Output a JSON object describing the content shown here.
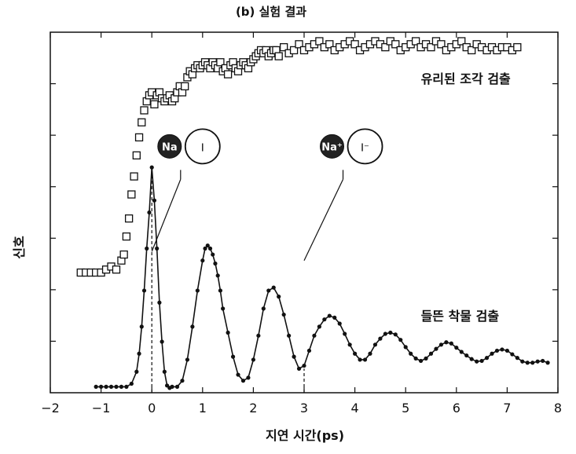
{
  "chart_data": {
    "type": "scatter",
    "title": "(b) 실험 결과",
    "xlabel": "지연 시간(ps)",
    "ylabel": "신호",
    "xlim": [
      -2,
      8
    ],
    "ylim": [
      0,
      6
    ],
    "x_ticks": [
      -2,
      -1,
      0,
      1,
      2,
      3,
      4,
      5,
      6,
      7,
      8
    ],
    "y_ticks_count": 6,
    "grid": false,
    "series": [
      {
        "name": "유리된 조각 검출",
        "marker": "open-square",
        "x": [
          -1.4,
          -1.3,
          -1.2,
          -1.1,
          -1.0,
          -0.9,
          -0.8,
          -0.7,
          -0.6,
          -0.55,
          -0.5,
          -0.45,
          -0.4,
          -0.35,
          -0.3,
          -0.25,
          -0.2,
          -0.15,
          -0.1,
          -0.05,
          0.0,
          0.05,
          0.1,
          0.15,
          0.2,
          0.25,
          0.3,
          0.35,
          0.4,
          0.45,
          0.5,
          0.55,
          0.6,
          0.65,
          0.7,
          0.75,
          0.8,
          0.85,
          0.9,
          0.95,
          1.0,
          1.05,
          1.1,
          1.15,
          1.2,
          1.25,
          1.3,
          1.35,
          1.4,
          1.45,
          1.5,
          1.55,
          1.6,
          1.65,
          1.7,
          1.75,
          1.8,
          1.85,
          1.9,
          1.95,
          2.0,
          2.05,
          2.1,
          2.15,
          2.2,
          2.25,
          2.3,
          2.35,
          2.4,
          2.45,
          2.5,
          2.6,
          2.7,
          2.8,
          2.9,
          3.0,
          3.1,
          3.2,
          3.3,
          3.4,
          3.5,
          3.6,
          3.7,
          3.8,
          3.9,
          4.0,
          4.1,
          4.2,
          4.3,
          4.4,
          4.5,
          4.6,
          4.7,
          4.8,
          4.9,
          5.0,
          5.1,
          5.2,
          5.3,
          5.4,
          5.5,
          5.6,
          5.7,
          5.8,
          5.9,
          6.0,
          6.1,
          6.2,
          6.3,
          6.4,
          6.5,
          6.6,
          6.7,
          6.8,
          6.9,
          7.0,
          7.1,
          7.2
        ],
        "y": [
          2.0,
          2.0,
          2.0,
          2.0,
          2.0,
          2.05,
          2.1,
          2.05,
          2.2,
          2.3,
          2.6,
          2.9,
          3.3,
          3.6,
          3.95,
          4.25,
          4.5,
          4.7,
          4.85,
          4.95,
          5.0,
          4.8,
          4.95,
          5.0,
          4.9,
          4.85,
          4.9,
          4.95,
          4.85,
          4.9,
          5.0,
          5.1,
          5.0,
          5.1,
          5.25,
          5.35,
          5.3,
          5.4,
          5.45,
          5.4,
          5.45,
          5.5,
          5.45,
          5.4,
          5.5,
          5.45,
          5.4,
          5.5,
          5.35,
          5.4,
          5.3,
          5.45,
          5.5,
          5.4,
          5.35,
          5.45,
          5.5,
          5.45,
          5.4,
          5.5,
          5.55,
          5.6,
          5.65,
          5.7,
          5.65,
          5.7,
          5.6,
          5.65,
          5.7,
          5.7,
          5.6,
          5.75,
          5.65,
          5.7,
          5.8,
          5.7,
          5.75,
          5.8,
          5.85,
          5.75,
          5.8,
          5.7,
          5.75,
          5.8,
          5.85,
          5.8,
          5.7,
          5.75,
          5.8,
          5.85,
          5.8,
          5.75,
          5.85,
          5.8,
          5.7,
          5.75,
          5.8,
          5.85,
          5.75,
          5.8,
          5.75,
          5.85,
          5.8,
          5.7,
          5.75,
          5.8,
          5.85,
          5.75,
          5.7,
          5.8,
          5.75,
          5.7,
          5.75,
          5.7,
          5.75,
          5.75,
          5.7,
          5.75
        ]
      },
      {
        "name": "들뜬 착물 검출",
        "marker": "filled-circle",
        "x": [
          -1.1,
          -1.0,
          -0.9,
          -0.8,
          -0.7,
          -0.6,
          -0.5,
          -0.4,
          -0.3,
          -0.25,
          -0.2,
          -0.15,
          -0.1,
          -0.05,
          0.0,
          0.05,
          0.1,
          0.15,
          0.2,
          0.25,
          0.3,
          0.35,
          0.4,
          0.5,
          0.6,
          0.7,
          0.8,
          0.9,
          1.0,
          1.05,
          1.1,
          1.15,
          1.2,
          1.25,
          1.3,
          1.35,
          1.4,
          1.5,
          1.6,
          1.7,
          1.8,
          1.9,
          2.0,
          2.1,
          2.2,
          2.3,
          2.4,
          2.5,
          2.6,
          2.7,
          2.8,
          2.9,
          3.0,
          3.1,
          3.2,
          3.3,
          3.4,
          3.5,
          3.6,
          3.7,
          3.8,
          3.9,
          4.0,
          4.1,
          4.2,
          4.3,
          4.4,
          4.5,
          4.6,
          4.7,
          4.8,
          4.9,
          5.0,
          5.1,
          5.2,
          5.3,
          5.4,
          5.5,
          5.6,
          5.7,
          5.8,
          5.9,
          6.0,
          6.1,
          6.2,
          6.3,
          6.4,
          6.5,
          6.6,
          6.7,
          6.8,
          6.9,
          7.0,
          7.1,
          7.2,
          7.3,
          7.4,
          7.5,
          7.6,
          7.7,
          7.8
        ],
        "y": [
          0.1,
          0.1,
          0.1,
          0.1,
          0.1,
          0.1,
          0.1,
          0.15,
          0.35,
          0.65,
          1.1,
          1.7,
          2.4,
          3.0,
          3.75,
          3.2,
          2.4,
          1.5,
          0.85,
          0.35,
          0.12,
          0.08,
          0.1,
          0.1,
          0.2,
          0.55,
          1.1,
          1.7,
          2.2,
          2.4,
          2.45,
          2.4,
          2.3,
          2.15,
          1.95,
          1.7,
          1.4,
          1.0,
          0.6,
          0.3,
          0.2,
          0.25,
          0.55,
          0.95,
          1.4,
          1.7,
          1.75,
          1.6,
          1.3,
          0.95,
          0.6,
          0.4,
          0.45,
          0.7,
          0.95,
          1.1,
          1.22,
          1.28,
          1.25,
          1.15,
          0.98,
          0.8,
          0.65,
          0.55,
          0.55,
          0.65,
          0.8,
          0.9,
          0.98,
          1.0,
          0.97,
          0.88,
          0.76,
          0.65,
          0.57,
          0.53,
          0.57,
          0.65,
          0.73,
          0.8,
          0.84,
          0.82,
          0.75,
          0.68,
          0.62,
          0.56,
          0.52,
          0.53,
          0.58,
          0.65,
          0.7,
          0.72,
          0.7,
          0.64,
          0.58,
          0.52,
          0.5,
          0.5,
          0.52,
          0.53,
          0.5
        ]
      }
    ],
    "annotations": [
      {
        "text": "유리된 조각 검출",
        "x": 5.3,
        "y": 5.15
      },
      {
        "text": "들뜬 착물 검출",
        "x": 5.3,
        "y": 1.2
      }
    ],
    "markers_vlines": [
      0,
      3
    ],
    "insets": [
      {
        "label_atom1": "Na",
        "label_atom2": "I",
        "x": 1.0,
        "y": 4.1
      },
      {
        "label_atom1": "Na⁺",
        "label_atom2": "I⁻",
        "x": 4.2,
        "y": 4.1
      }
    ]
  }
}
